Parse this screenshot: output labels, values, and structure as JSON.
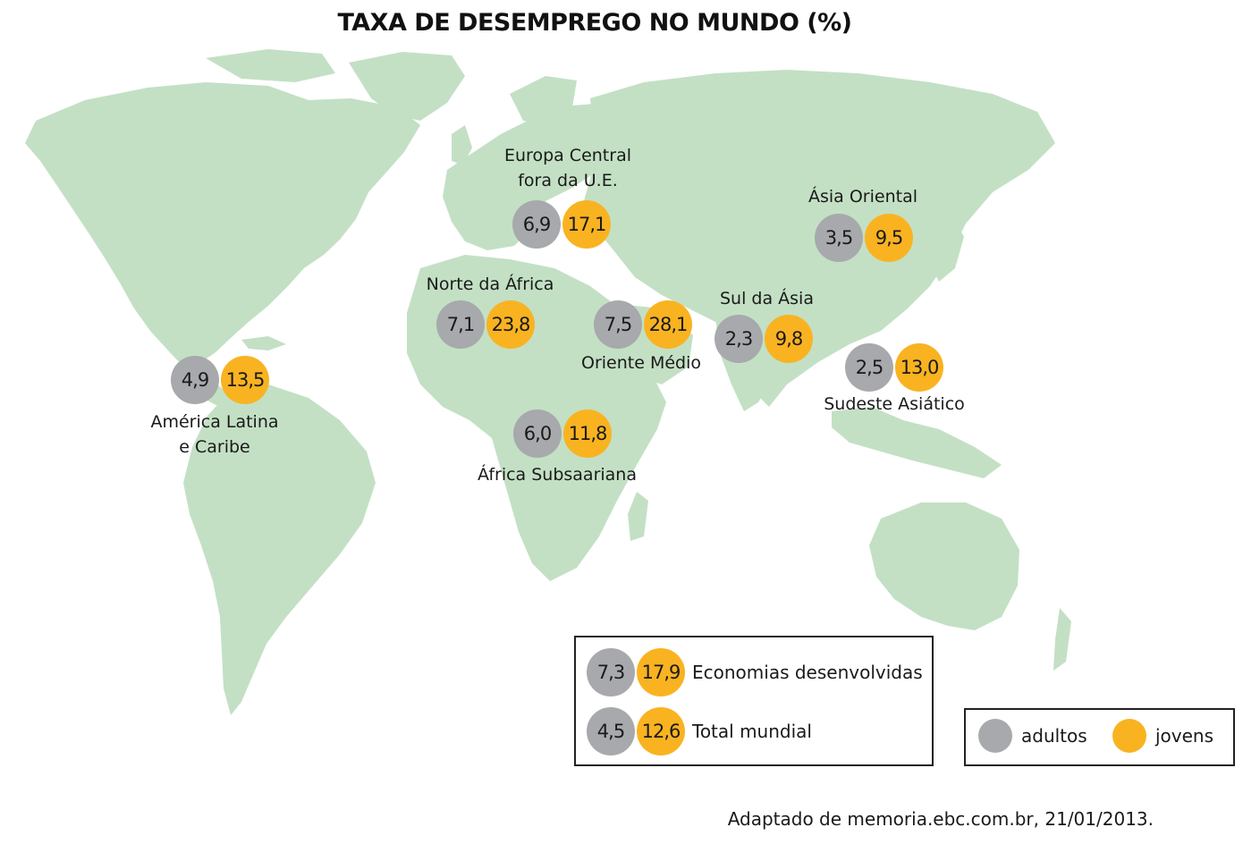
{
  "title": "TAXA DE DESEMPREGO NO MUNDO (%)",
  "colors": {
    "land": "#c3e0c4",
    "adultos": "#a7a9ac",
    "jovens": "#f9b321"
  },
  "regions": [
    {
      "label_line1": "Europa Central",
      "label_line2": "fora da U.E.",
      "adultos": "6,9",
      "jovens": "17,1"
    },
    {
      "label_line1": "Ásia Oriental",
      "label_line2": "",
      "adultos": "3,5",
      "jovens": "9,5"
    },
    {
      "label_line1": "Norte da África",
      "label_line2": "",
      "adultos": "7,1",
      "jovens": "23,8"
    },
    {
      "label_line1": "Oriente Médio",
      "label_line2": "",
      "adultos": "7,5",
      "jovens": "28,1"
    },
    {
      "label_line1": "Sul da Ásia",
      "label_line2": "",
      "adultos": "2,3",
      "jovens": "9,8"
    },
    {
      "label_line1": "Sudeste Asiático",
      "label_line2": "",
      "adultos": "2,5",
      "jovens": "13,0"
    },
    {
      "label_line1": "América Latina",
      "label_line2": "e Caribe",
      "adultos": "4,9",
      "jovens": "13,5"
    },
    {
      "label_line1": "África Subsaariana",
      "label_line2": "",
      "adultos": "6,0",
      "jovens": "11,8"
    }
  ],
  "summary": [
    {
      "label": "Economias desenvolvidas",
      "adultos": "7,3",
      "jovens": "17,9"
    },
    {
      "label": "Total mundial",
      "adultos": "4,5",
      "jovens": "12,6"
    }
  ],
  "legend": {
    "adultos": "adultos",
    "jovens": "jovens"
  },
  "source": "Adaptado de memoria.ebc.com.br, 21/01/2013."
}
